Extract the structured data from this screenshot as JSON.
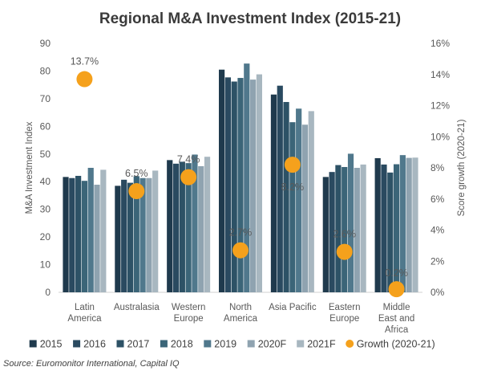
{
  "chart_data": {
    "type": "bar",
    "title": "Regional M&A Investment Index (2015-21)",
    "ylabel": "M&A Investment Index",
    "y2label": "Score growth (2020-21)",
    "ylim": [
      0,
      90
    ],
    "yticks": [
      0,
      10,
      20,
      30,
      40,
      50,
      60,
      70,
      80,
      90
    ],
    "y2lim": [
      0,
      16
    ],
    "y2ticks": [
      "0%",
      "2%",
      "4%",
      "6%",
      "8%",
      "10%",
      "12%",
      "14%",
      "16%"
    ],
    "y2tick_values": [
      0,
      2,
      4,
      6,
      8,
      10,
      12,
      14,
      16
    ],
    "categories": [
      [
        "Latin",
        "America"
      ],
      [
        "Australasia"
      ],
      [
        "Western",
        "Europe"
      ],
      [
        "North",
        "America"
      ],
      [
        "Asia Pacific"
      ],
      [
        "Eastern",
        "Europe"
      ],
      [
        "Middle",
        "East and",
        "Africa"
      ]
    ],
    "series": [
      {
        "name": "2015",
        "color": "#1f3a4d",
        "values": [
          41.7,
          38.5,
          47.8,
          80.5,
          71.5,
          41.7,
          48.5
        ]
      },
      {
        "name": "2016",
        "color": "#2a4a60",
        "values": [
          41.3,
          40.7,
          46.5,
          77.7,
          74.7,
          43.5,
          46.2
        ]
      },
      {
        "name": "2017",
        "color": "#2d5266",
        "values": [
          42.1,
          39.6,
          47.2,
          76.2,
          68.8,
          46.0,
          43.3
        ]
      },
      {
        "name": "2018",
        "color": "#3b6578",
        "values": [
          40.3,
          42.0,
          46.7,
          77.5,
          61.5,
          45.3,
          46.3
        ]
      },
      {
        "name": "2019",
        "color": "#50788c",
        "values": [
          45.0,
          41.3,
          49.8,
          82.7,
          66.4,
          50.1,
          49.6
        ]
      },
      {
        "name": "2020F",
        "color": "#8fa3b0",
        "values": [
          38.9,
          41.3,
          45.6,
          76.9,
          60.6,
          45.0,
          48.6
        ]
      },
      {
        "name": "2021F",
        "color": "#a8b7c0",
        "values": [
          44.3,
          44.0,
          49.0,
          78.8,
          65.5,
          46.2,
          48.7
        ]
      }
    ],
    "growth_series": {
      "name": "Growth (2020-21)",
      "color": "#f5a11c",
      "axis": "secondary",
      "values": [
        13.7,
        6.5,
        7.4,
        2.7,
        8.2,
        2.6,
        0.2
      ],
      "labels": [
        "13.7%",
        "6.5%",
        "7.4%",
        "2.7%",
        "8.2%",
        "2.6%",
        "0.2%"
      ]
    },
    "grid": false,
    "legend": "bottom"
  },
  "source": "Source: Euromonitor International, Capital IQ"
}
